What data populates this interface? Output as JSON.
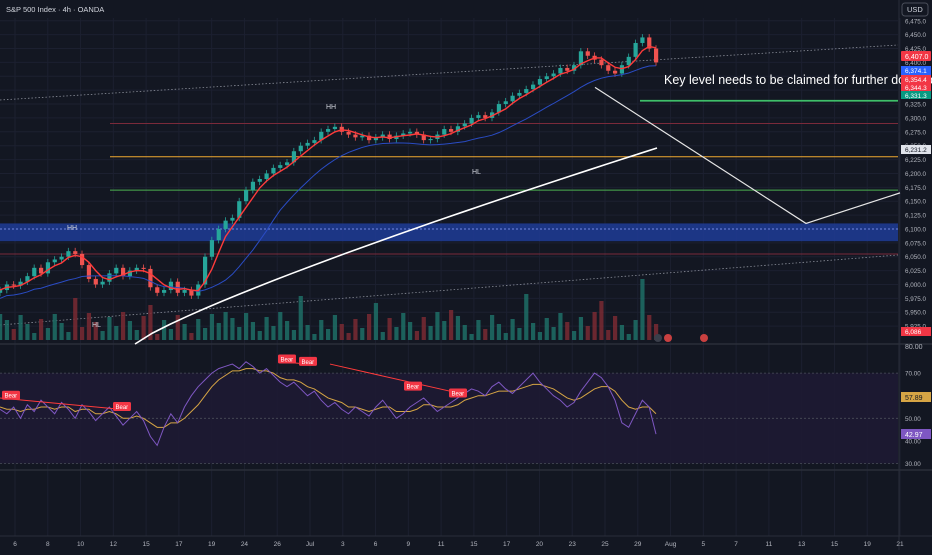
{
  "header": {
    "symbol_title": "S&P 500 Index · 4h · OANDA",
    "currency_button": "USD"
  },
  "colors": {
    "background": "#131722",
    "up": "#26a69a",
    "down": "#ef5350",
    "price_line": "#ff3b3b",
    "slow_ma": "#2a4cc4",
    "white_curve": "#ffffff",
    "rsi_line": "#7e57c2",
    "rsi_signal": "#d6a545",
    "support_zone": "#1e3c96",
    "orange_level": "#f0a830",
    "green_level": "#4caf50",
    "maroon_level": "#7a2a3a"
  },
  "annotations": {
    "key_level_text": "Key level needs to be claimed for further downside",
    "hh_left": "HH",
    "hh_mid": "HH",
    "hl_left": "HL",
    "hl_mid": "HL",
    "bear_labels": [
      "Bear",
      "Bear",
      "Bear",
      "Bear",
      "Bear",
      "Bear"
    ]
  },
  "chart_data": [
    {
      "type": "line",
      "title": "S&P 500 Index · 4h · OANDA",
      "y_axis_ticks": [
        "6,475.0",
        "6,450.0",
        "6,425.0",
        "6,400.0",
        "6,375.0",
        "6,350.0",
        "6,325.0",
        "6,300.0",
        "6,275.0",
        "6,250.0",
        "6,225.0",
        "6,200.0",
        "6,175.0",
        "6,150.0",
        "6,125.0",
        "6,100.0",
        "6,075.0",
        "6,050.0",
        "6,025.0",
        "6,000.0",
        "5,975.0",
        "5,950.0",
        "5,925.0"
      ],
      "ylim": [
        5900,
        6480
      ],
      "x_axis_ticks": [
        "6",
        "8",
        "10",
        "12",
        "15",
        "17",
        "19",
        "24",
        "26",
        "Jul",
        "3",
        "6",
        "9",
        "11",
        "15",
        "17",
        "20",
        "23",
        "25",
        "29",
        "Aug",
        "5",
        "7",
        "11",
        "13",
        "15",
        "19",
        "21"
      ],
      "price_labels": {
        "last_price": "6,407.0",
        "level_1": "6,374.1",
        "level_2": "6,354.4",
        "level_3": "6,344.3",
        "level_4": "6,331.3",
        "level_5": "6,231.2",
        "volume_label": "6,086"
      },
      "price_series": [
        5990,
        6000,
        5998,
        6005,
        6015,
        6030,
        6020,
        6040,
        6045,
        6050,
        6060,
        6055,
        6035,
        6010,
        6000,
        6005,
        6020,
        6030,
        6015,
        6025,
        6030,
        6028,
        5995,
        5985,
        5990,
        6005,
        5985,
        5990,
        5980,
        6000,
        6050,
        6080,
        6100,
        6115,
        6120,
        6150,
        6170,
        6185,
        6190,
        6200,
        6210,
        6215,
        6220,
        6240,
        6250,
        6255,
        6260,
        6275,
        6280,
        6284,
        6275,
        6270,
        6265,
        6268,
        6260,
        6265,
        6270,
        6262,
        6268,
        6272,
        6275,
        6270,
        6260,
        6262,
        6270,
        6280,
        6275,
        6285,
        6290,
        6300,
        6305,
        6300,
        6310,
        6325,
        6330,
        6340,
        6345,
        6352,
        6360,
        6370,
        6375,
        6380,
        6390,
        6385,
        6395,
        6420,
        6412,
        6405,
        6395,
        6385,
        6380,
        6395,
        6410,
        6435,
        6445,
        6425,
        6400
      ],
      "levels": {
        "maroon_upper": 6290,
        "orange": 6230,
        "green": 6170,
        "zone_top": 6110,
        "zone_bottom": 6078,
        "maroon_lower": 6055,
        "target_low": 6110
      },
      "projection": [
        [
          0,
          6355
        ],
        [
          1,
          6110
        ],
        [
          2,
          6165
        ]
      ]
    },
    {
      "type": "line",
      "title": "",
      "y_axis_ticks": [
        "70.00",
        "60.00",
        "50.00",
        "40.00",
        "30.00"
      ],
      "ylim": [
        28,
        82
      ],
      "hlines": [
        70,
        50,
        30
      ],
      "labels": {
        "rsi_value": "57.89",
        "rsi_low": "42.97",
        "top_value": "80.00"
      },
      "rsi": [
        54,
        52,
        55,
        50,
        56,
        53,
        58,
        55,
        52,
        57,
        54,
        50,
        56,
        53,
        49,
        52,
        55,
        51,
        47,
        50,
        53,
        49,
        42,
        38,
        46,
        52,
        48,
        55,
        60,
        64,
        67,
        70,
        72,
        73,
        74,
        72,
        75,
        73,
        70,
        72,
        69,
        66,
        64,
        66,
        63,
        60,
        62,
        58,
        55,
        57,
        54,
        52,
        55,
        53,
        51,
        55,
        58,
        54,
        50,
        52,
        55,
        57,
        59,
        56,
        53,
        55,
        57,
        59,
        61,
        63,
        62,
        60,
        64,
        66,
        63,
        61,
        64,
        67,
        70,
        66,
        63,
        60,
        58,
        55,
        57,
        62,
        66,
        70,
        68,
        64,
        58,
        48,
        46,
        52,
        58,
        55,
        43
      ],
      "signal": [
        55,
        54,
        54,
        53,
        54,
        54,
        55,
        55,
        54,
        55,
        55,
        53,
        54,
        54,
        52,
        52,
        53,
        52,
        50,
        50,
        51,
        50,
        48,
        46,
        46,
        48,
        48,
        50,
        53,
        56,
        60,
        64,
        67,
        69,
        71,
        71,
        72,
        72,
        71,
        71,
        70,
        68,
        67,
        67,
        66,
        64,
        63,
        61,
        59,
        58,
        57,
        55,
        55,
        54,
        53,
        54,
        55,
        55,
        53,
        53,
        53,
        54,
        56,
        56,
        55,
        55,
        55,
        56,
        58,
        59,
        60,
        60,
        61,
        62,
        62,
        62,
        63,
        64,
        65,
        65,
        64,
        63,
        61,
        59,
        58,
        59,
        61,
        63,
        64,
        64,
        62,
        58,
        55,
        54,
        55,
        55,
        52
      ]
    }
  ]
}
